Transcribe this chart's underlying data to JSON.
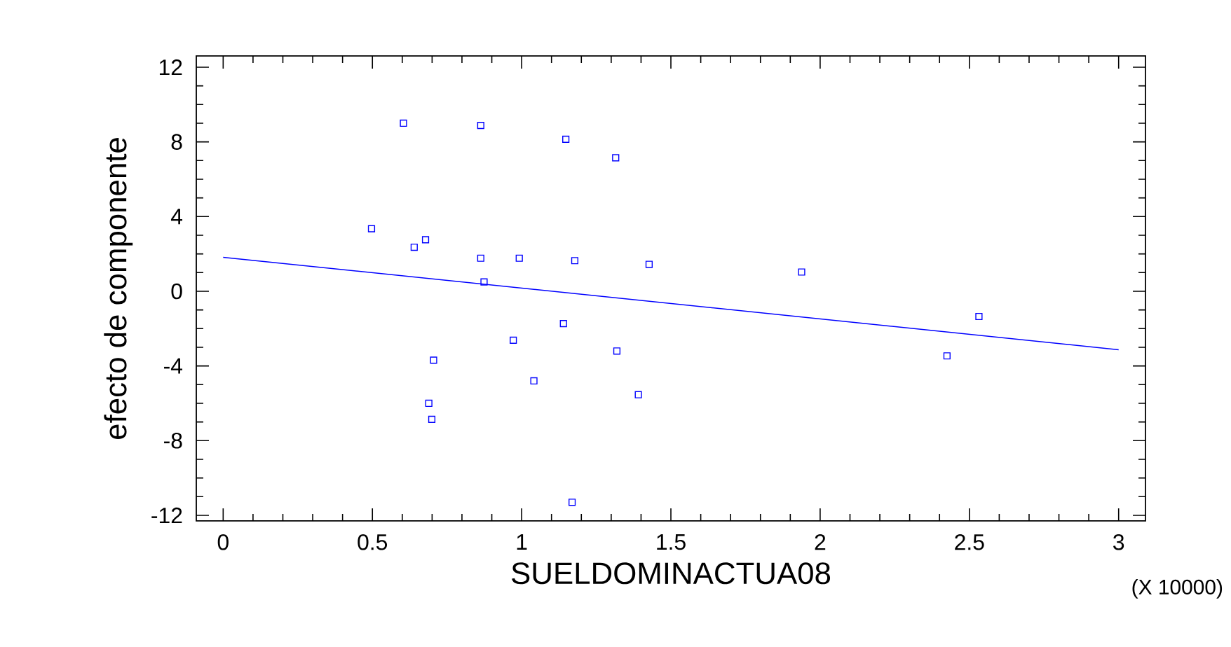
{
  "chart_data": {
    "type": "scatter",
    "xlabel": "SUELDOMINACTUA08",
    "ylabel": "efecto de componente",
    "annotations": [
      "(X 10000)"
    ],
    "marker": "square",
    "grid": false,
    "xlim": [
      -0.09,
      3.09
    ],
    "ylim": [
      -12.3,
      12.6
    ],
    "xticks": [
      0,
      0.5,
      1,
      1.5,
      2,
      2.5,
      3
    ],
    "yticks": [
      -12,
      -8,
      -4,
      0,
      4,
      8,
      12
    ],
    "series": [
      {
        "color": "#0000ff",
        "x": [
          0.497,
          0.604,
          0.64,
          0.678,
          0.863,
          0.863,
          0.874,
          0.992,
          1.148,
          1.178,
          1.315,
          0.705,
          0.689,
          0.699,
          0.972,
          1.041,
          1.14,
          1.319,
          1.391,
          1.169,
          1.427,
          1.938,
          2.532,
          2.425
        ],
        "values": [
          3.35,
          9.0,
          2.36,
          2.76,
          8.88,
          1.77,
          0.5,
          1.77,
          8.14,
          1.64,
          7.15,
          -3.69,
          -6.0,
          -6.86,
          -2.62,
          -4.8,
          -1.73,
          -3.2,
          -5.54,
          -11.3,
          1.44,
          1.03,
          -1.35,
          -3.46
        ]
      },
      {
        "type": "line",
        "color": "#0000ff",
        "marker": "none",
        "x": [
          0,
          3
        ],
        "values": [
          1.82,
          -3.13
        ]
      }
    ]
  }
}
